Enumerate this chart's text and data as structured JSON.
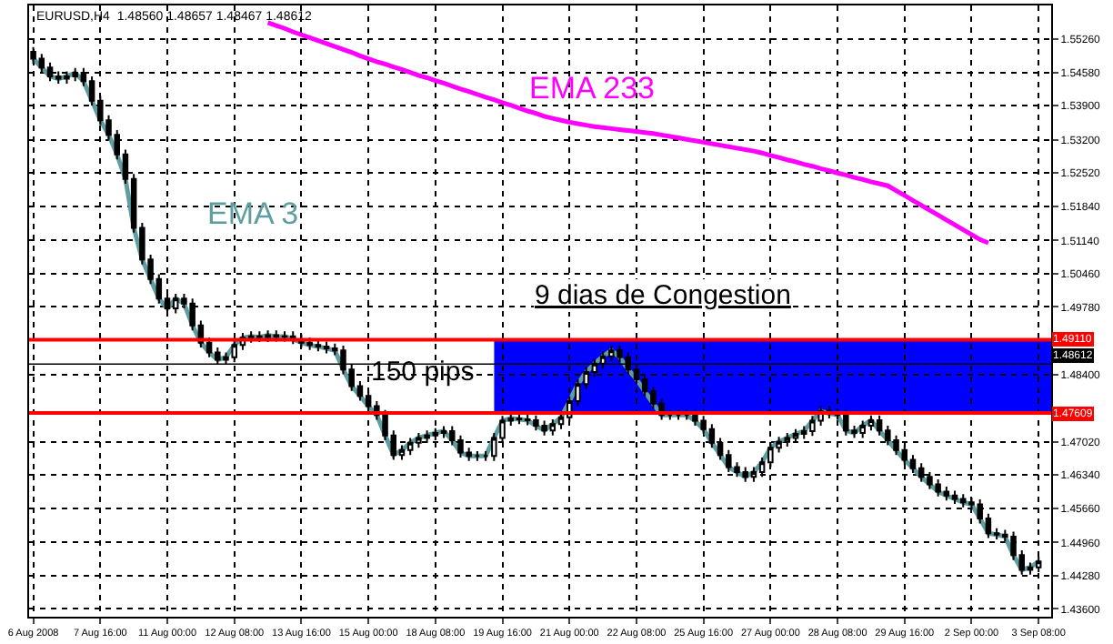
{
  "chart_data": {
    "type": "candlestick",
    "categories": [
      "6 Aug 2008",
      null,
      null,
      null,
      null,
      null,
      null,
      null,
      "7 Aug 16:00",
      null,
      null,
      null,
      null,
      null,
      null,
      null,
      "11 Aug 00:00",
      null,
      null,
      null,
      null,
      null,
      null,
      null,
      "12 Aug 08:00",
      null,
      null,
      null,
      null,
      null,
      null,
      null,
      "13 Aug 16:00",
      null,
      null,
      null,
      null,
      null,
      null,
      null,
      "15 Aug 00:00",
      null,
      null,
      null,
      null,
      null,
      null,
      null,
      "18 Aug 08:00",
      null,
      null,
      null,
      null,
      null,
      null,
      null,
      "19 Aug 16:00",
      null,
      null,
      null,
      null,
      null,
      null,
      null,
      "21 Aug 00:00",
      null,
      null,
      null,
      null,
      null,
      null,
      null,
      "22 Aug 08:00",
      null,
      null,
      null,
      null,
      null,
      null,
      null,
      "25 Aug 16:00",
      null,
      null,
      null,
      null,
      null,
      null,
      null,
      "27 Aug 00:00",
      null,
      null,
      null,
      null,
      null,
      null,
      null,
      "28 Aug 08:00",
      null,
      null,
      null,
      null,
      null,
      null,
      null,
      "29 Aug 16:00",
      null,
      null,
      null,
      null,
      null,
      null,
      null,
      "2 Sep 00:00",
      null,
      null,
      null,
      null,
      null,
      null,
      null,
      "3 Sep 08:00"
    ],
    "ohlc": [
      [
        1.55,
        1.551,
        1.5476,
        1.5486
      ],
      [
        1.5486,
        1.5496,
        1.5458,
        1.5468
      ],
      [
        1.5468,
        1.5478,
        1.544,
        1.545
      ],
      [
        1.545,
        1.546,
        1.5435,
        1.5445
      ],
      [
        1.5445,
        1.546,
        1.5435,
        1.545
      ],
      [
        1.545,
        1.5467,
        1.544,
        1.5457
      ],
      [
        1.5457,
        1.5467,
        1.543,
        1.544
      ],
      [
        1.544,
        1.545,
        1.539,
        1.54
      ],
      [
        1.54,
        1.541,
        1.535,
        1.536
      ],
      [
        1.536,
        1.537,
        1.532,
        1.533
      ],
      [
        1.533,
        1.534,
        1.528,
        1.529
      ],
      [
        1.529,
        1.53,
        1.523,
        1.524
      ],
      [
        1.524,
        1.525,
        1.513,
        1.514
      ],
      [
        1.514,
        1.515,
        1.5065,
        1.5075
      ],
      [
        1.5075,
        1.5085,
        1.5025,
        1.5035
      ],
      [
        1.5035,
        1.5045,
        1.4985,
        1.4995
      ],
      [
        1.4995,
        1.5005,
        1.4965,
        1.4975
      ],
      [
        1.4975,
        1.5005,
        1.4965,
        1.4995
      ],
      [
        1.4995,
        1.5005,
        1.4975,
        1.4985
      ],
      [
        1.4985,
        1.4995,
        1.493,
        1.494
      ],
      [
        1.494,
        1.495,
        1.4895,
        1.4905
      ],
      [
        1.4905,
        1.4915,
        1.4875,
        1.4885
      ],
      [
        1.4885,
        1.4895,
        1.486,
        1.487
      ],
      [
        1.487,
        1.4885,
        1.486,
        1.4875
      ],
      [
        1.4875,
        1.491,
        1.4865,
        1.49
      ],
      [
        1.49,
        1.4925,
        1.489,
        1.4915
      ],
      [
        1.4915,
        1.4928,
        1.4905,
        1.4918
      ],
      [
        1.4918,
        1.4928,
        1.4906,
        1.4916
      ],
      [
        1.4916,
        1.493,
        1.4906,
        1.492
      ],
      [
        1.492,
        1.493,
        1.4907,
        1.4917
      ],
      [
        1.4917,
        1.4928,
        1.4907,
        1.4918
      ],
      [
        1.4918,
        1.4928,
        1.4902,
        1.4912
      ],
      [
        1.4912,
        1.4922,
        1.4895,
        1.4905
      ],
      [
        1.4905,
        1.4915,
        1.489,
        1.49
      ],
      [
        1.49,
        1.491,
        1.4887,
        1.4897
      ],
      [
        1.4897,
        1.4907,
        1.4883,
        1.4893
      ],
      [
        1.4893,
        1.4903,
        1.4879,
        1.4889
      ],
      [
        1.4889,
        1.4899,
        1.484,
        1.485
      ],
      [
        1.485,
        1.486,
        1.4806,
        1.4816
      ],
      [
        1.4816,
        1.4826,
        1.4786,
        1.4796
      ],
      [
        1.4796,
        1.4806,
        1.4765,
        1.4775
      ],
      [
        1.4775,
        1.4785,
        1.4747,
        1.4757
      ],
      [
        1.4757,
        1.4767,
        1.4705,
        1.4715
      ],
      [
        1.4715,
        1.4725,
        1.4665,
        1.4675
      ],
      [
        1.4675,
        1.4695,
        1.4665,
        1.4685
      ],
      [
        1.4685,
        1.471,
        1.4675,
        1.47
      ],
      [
        1.47,
        1.472,
        1.469,
        1.471
      ],
      [
        1.471,
        1.4725,
        1.47,
        1.4715
      ],
      [
        1.4715,
        1.473,
        1.4705,
        1.472
      ],
      [
        1.472,
        1.4734,
        1.471,
        1.4724
      ],
      [
        1.4724,
        1.4734,
        1.4695,
        1.4705
      ],
      [
        1.4705,
        1.4715,
        1.467,
        1.468
      ],
      [
        1.468,
        1.469,
        1.4663,
        1.4673
      ],
      [
        1.4673,
        1.4683,
        1.4663,
        1.4673
      ],
      [
        1.4673,
        1.4683,
        1.4663,
        1.4673
      ],
      [
        1.4673,
        1.472,
        1.4663,
        1.471
      ],
      [
        1.471,
        1.4755,
        1.47,
        1.4745
      ],
      [
        1.4745,
        1.476,
        1.4735,
        1.475
      ],
      [
        1.475,
        1.476,
        1.4738,
        1.4748
      ],
      [
        1.4748,
        1.4758,
        1.4736,
        1.4746
      ],
      [
        1.4746,
        1.4756,
        1.4725,
        1.4735
      ],
      [
        1.4735,
        1.4745,
        1.4715,
        1.4725
      ],
      [
        1.4725,
        1.4748,
        1.4715,
        1.4738
      ],
      [
        1.4738,
        1.4762,
        1.4728,
        1.4752
      ],
      [
        1.4752,
        1.4795,
        1.4742,
        1.4785
      ],
      [
        1.4785,
        1.483,
        1.4775,
        1.482
      ],
      [
        1.482,
        1.4855,
        1.481,
        1.4845
      ],
      [
        1.4845,
        1.4872,
        1.4835,
        1.4862
      ],
      [
        1.4862,
        1.4887,
        1.4852,
        1.4877
      ],
      [
        1.4877,
        1.4899,
        1.4867,
        1.4889
      ],
      [
        1.4889,
        1.4899,
        1.4865,
        1.4875
      ],
      [
        1.4875,
        1.4885,
        1.484,
        1.485
      ],
      [
        1.485,
        1.486,
        1.482,
        1.483
      ],
      [
        1.483,
        1.484,
        1.4795,
        1.4805
      ],
      [
        1.4805,
        1.4815,
        1.477,
        1.478
      ],
      [
        1.478,
        1.479,
        1.4747,
        1.4757
      ],
      [
        1.4757,
        1.4767,
        1.4747,
        1.4757
      ],
      [
        1.4757,
        1.4767,
        1.4747,
        1.4757
      ],
      [
        1.4757,
        1.4767,
        1.4747,
        1.4757
      ],
      [
        1.4757,
        1.4767,
        1.4735,
        1.4745
      ],
      [
        1.4745,
        1.4755,
        1.4718,
        1.4728
      ],
      [
        1.4728,
        1.4738,
        1.469,
        1.47
      ],
      [
        1.47,
        1.471,
        1.4665,
        1.4675
      ],
      [
        1.4675,
        1.4685,
        1.464,
        1.465
      ],
      [
        1.465,
        1.466,
        1.463,
        1.464
      ],
      [
        1.464,
        1.465,
        1.462,
        1.463
      ],
      [
        1.463,
        1.465,
        1.462,
        1.464
      ],
      [
        1.464,
        1.467,
        1.463,
        1.466
      ],
      [
        1.466,
        1.47,
        1.465,
        1.469
      ],
      [
        1.469,
        1.4712,
        1.468,
        1.4702
      ],
      [
        1.4702,
        1.472,
        1.4692,
        1.471
      ],
      [
        1.471,
        1.4728,
        1.47,
        1.4718
      ],
      [
        1.4718,
        1.4734,
        1.4708,
        1.4724
      ],
      [
        1.4724,
        1.4755,
        1.4714,
        1.4745
      ],
      [
        1.4745,
        1.4775,
        1.4735,
        1.4765
      ],
      [
        1.4765,
        1.4775,
        1.475,
        1.476
      ],
      [
        1.476,
        1.477,
        1.4747,
        1.4757
      ],
      [
        1.4757,
        1.4767,
        1.4715,
        1.4725
      ],
      [
        1.4725,
        1.4735,
        1.471,
        1.472
      ],
      [
        1.472,
        1.4745,
        1.471,
        1.4735
      ],
      [
        1.4735,
        1.4756,
        1.4725,
        1.4746
      ],
      [
        1.4746,
        1.4756,
        1.4715,
        1.4725
      ],
      [
        1.4725,
        1.4735,
        1.4695,
        1.4705
      ],
      [
        1.4705,
        1.4715,
        1.4675,
        1.4685
      ],
      [
        1.4685,
        1.4695,
        1.4655,
        1.4665
      ],
      [
        1.4665,
        1.4675,
        1.4638,
        1.4648
      ],
      [
        1.4648,
        1.4658,
        1.462,
        1.463
      ],
      [
        1.463,
        1.464,
        1.4605,
        1.4615
      ],
      [
        1.4615,
        1.4625,
        1.459,
        1.46
      ],
      [
        1.46,
        1.461,
        1.4582,
        1.4592
      ],
      [
        1.4592,
        1.4602,
        1.4575,
        1.4585
      ],
      [
        1.4585,
        1.4595,
        1.4568,
        1.4578
      ],
      [
        1.4578,
        1.4588,
        1.4564,
        1.4574
      ],
      [
        1.4574,
        1.4584,
        1.4535,
        1.4545
      ],
      [
        1.4545,
        1.4555,
        1.4505,
        1.4515
      ],
      [
        1.4515,
        1.4525,
        1.4502,
        1.4512
      ],
      [
        1.4512,
        1.4522,
        1.4498,
        1.4508
      ],
      [
        1.4508,
        1.4518,
        1.446,
        1.447
      ],
      [
        1.447,
        1.448,
        1.443,
        1.444
      ],
      [
        1.444,
        1.4455,
        1.443,
        1.4445
      ],
      [
        1.4445,
        1.4467,
        1.4435,
        1.4457
      ]
    ],
    "series": [
      {
        "name": "EMA 3",
        "type": "line",
        "color": "#5f9ea0",
        "values": [
          1.5486,
          1.5468,
          1.545,
          1.5445,
          1.545,
          1.5457,
          1.544,
          1.54,
          1.536,
          1.533,
          1.529,
          1.524,
          1.514,
          1.5075,
          1.5035,
          1.4995,
          1.4975,
          1.4995,
          1.4985,
          1.494,
          1.4905,
          1.4885,
          1.487,
          1.4875,
          1.49,
          1.4915,
          1.4918,
          1.4916,
          1.492,
          1.4917,
          1.4918,
          1.4912,
          1.4905,
          1.49,
          1.4897,
          1.4893,
          1.4889,
          1.485,
          1.4816,
          1.4796,
          1.4775,
          1.4757,
          1.4715,
          1.4675,
          1.4685,
          1.47,
          1.471,
          1.4715,
          1.472,
          1.4724,
          1.4705,
          1.468,
          1.4673,
          1.4673,
          1.4673,
          1.471,
          1.4745,
          1.475,
          1.4748,
          1.4746,
          1.4735,
          1.4725,
          1.4738,
          1.4752,
          1.4785,
          1.482,
          1.4845,
          1.4862,
          1.4877,
          1.4889,
          1.4875,
          1.485,
          1.483,
          1.4805,
          1.478,
          1.4757,
          1.4757,
          1.4757,
          1.4757,
          1.4745,
          1.4728,
          1.47,
          1.4675,
          1.465,
          1.464,
          1.463,
          1.464,
          1.466,
          1.469,
          1.4702,
          1.471,
          1.4718,
          1.4724,
          1.4745,
          1.4765,
          1.476,
          1.4757,
          1.4725,
          1.472,
          1.4735,
          1.4746,
          1.4725,
          1.4705,
          1.4685,
          1.4665,
          1.4648,
          1.463,
          1.4615,
          1.46,
          1.4592,
          1.4585,
          1.4578,
          1.4574,
          1.4545,
          1.4515,
          1.4512,
          1.4508,
          1.447,
          1.444,
          1.4445,
          1.4457
        ]
      },
      {
        "name": "EMA 233",
        "type": "line",
        "color": "#ff00ff",
        "values": [
          null,
          null,
          null,
          null,
          null,
          null,
          null,
          null,
          null,
          null,
          null,
          null,
          null,
          null,
          null,
          null,
          null,
          null,
          null,
          null,
          null,
          null,
          null,
          null,
          null,
          null,
          null,
          null,
          1.556,
          1.5554,
          1.5548,
          1.5541,
          1.5535,
          1.5529,
          1.5523,
          1.5517,
          1.5511,
          1.5505,
          1.5499,
          1.5492,
          1.5486,
          1.548,
          1.5475,
          1.5469,
          1.5464,
          1.5458,
          1.5452,
          1.5447,
          1.5441,
          1.5436,
          1.543,
          1.5424,
          1.5419,
          1.5413,
          1.5407,
          1.5402,
          1.5396,
          1.5391,
          1.5385,
          1.5379,
          1.5374,
          1.5368,
          1.5364,
          1.536,
          1.5356,
          1.5353,
          1.535,
          1.5347,
          1.5345,
          1.5343,
          1.5341,
          1.5339,
          1.5337,
          1.5335,
          1.5333,
          1.533,
          1.5327,
          1.5324,
          1.5321,
          1.5318,
          1.5315,
          1.5312,
          1.5309,
          1.5306,
          1.5303,
          1.53,
          1.5297,
          1.5293,
          1.5288,
          1.5284,
          1.5279,
          1.5275,
          1.527,
          1.5266,
          1.5261,
          1.5257,
          1.5252,
          1.5248,
          1.5243,
          1.5239,
          1.5234,
          1.523,
          1.5226,
          1.5216,
          1.5206,
          1.5196,
          1.5186,
          1.5176,
          1.5166,
          1.5156,
          1.5146,
          1.5136,
          1.5126,
          1.5116,
          1.5109,
          null,
          null,
          null,
          null,
          null,
          null
        ]
      }
    ],
    "ylim": [
      1.4344,
      1.5595
    ],
    "yticks": [
      {
        "value": 1.5526,
        "label": "1.55260"
      },
      {
        "value": 1.5458,
        "label": "1.54580"
      },
      {
        "value": 1.539,
        "label": "1.53900"
      },
      {
        "value": 1.532,
        "label": "1.53200"
      },
      {
        "value": 1.5252,
        "label": "1.52520"
      },
      {
        "value": 1.5184,
        "label": "1.51840"
      },
      {
        "value": 1.5114,
        "label": "1.51140"
      },
      {
        "value": 1.5046,
        "label": "1.50460"
      },
      {
        "value": 1.4978,
        "label": "1.49780"
      },
      {
        "value": 1.484,
        "label": "1.48400"
      },
      {
        "value": 1.4702,
        "label": "1.47020"
      },
      {
        "value": 1.4634,
        "label": "1.46340"
      },
      {
        "value": 1.4566,
        "label": "1.45660"
      },
      {
        "value": 1.4496,
        "label": "1.44960"
      },
      {
        "value": 1.4428,
        "label": "1.44280"
      },
      {
        "value": 1.436,
        "label": "1.43600"
      }
    ],
    "ref_lines": [
      {
        "axis": "y",
        "value": 1.4911,
        "label": "1.49110",
        "color": "#ff0000"
      },
      {
        "axis": "y",
        "value": 1.47609,
        "label": "1.47609",
        "color": "#ff0000"
      },
      {
        "axis": "y",
        "value": 1.48612,
        "label": "1.48612",
        "color": "#000000"
      }
    ],
    "bands": [
      {
        "axis": "y",
        "from": 1.47609,
        "to": 1.4911,
        "color": "#0000ff"
      }
    ],
    "annotations": [
      "EURUSD,H4  1.48560 1.48657 1.48467 1.48612",
      "9 dias de Congestion",
      "150 pips"
    ],
    "grid": true
  }
}
